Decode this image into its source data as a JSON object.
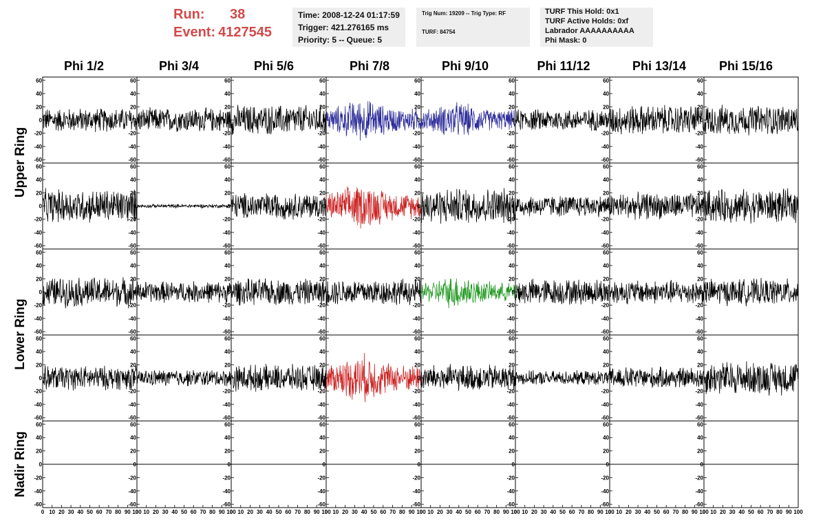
{
  "header": {
    "run_label": "Run:",
    "run_value": "38",
    "event_label": "Event:",
    "event_value": "4127545"
  },
  "info_time": {
    "time": "Time: 2008-12-24 01:17:59",
    "trigger": "Trigger: 421.276165 ms",
    "priority": "Priority: 5 -- Queue: 5"
  },
  "info_trig": {
    "trig": "Trig Num: 19209 -- Trig Type: RF",
    "turf": "TURF: 84754"
  },
  "info_turf": {
    "hold": "TURF This Hold: 0x1",
    "active": "TURF Active Holds: 0xf",
    "labrador": "Labrador AAAAAAAAAA",
    "mask": "Phi Mask: 0"
  },
  "colors": {
    "trace": "#000000",
    "upper_highlight": "#2b2b9a",
    "hpol_highlight": "#cc2222",
    "lower_highlight": "#229922",
    "run_text": "#d24a4a",
    "panel_bg": "#eeeeee"
  },
  "chart_data": {
    "type": "line",
    "columns": [
      "Phi 1/2",
      "Phi 3/4",
      "Phi 5/6",
      "Phi 7/8",
      "Phi 9/10",
      "Phi 11/12",
      "Phi 13/14",
      "Phi 15/16"
    ],
    "ring_labels": [
      "Upper Ring",
      "Lower Ring",
      "Nadir Ring"
    ],
    "rows_per_ring": [
      2,
      2,
      1
    ],
    "xlim": [
      0,
      100
    ],
    "ylim": [
      -65,
      65
    ],
    "x_ticks": [
      "0",
      "10",
      "20",
      "30",
      "40",
      "50",
      "60",
      "70",
      "80",
      "90",
      "100"
    ],
    "y_ticks": [
      "-60",
      "-40",
      "-20",
      "0",
      "20",
      "40",
      "60"
    ],
    "grid": false,
    "traces": [
      [
        {
          "amp": 20,
          "color": "trace"
        },
        {
          "amp": 20,
          "color": "trace"
        },
        {
          "amp": 25,
          "color": "trace"
        },
        {
          "amp": 35,
          "color": "upper_highlight"
        },
        {
          "amp": 30,
          "color": "upper_highlight"
        },
        {
          "amp": 18,
          "color": "trace"
        },
        {
          "amp": 25,
          "color": "trace"
        },
        {
          "amp": 25,
          "color": "trace"
        }
      ],
      [
        {
          "amp": 28,
          "color": "trace"
        },
        {
          "amp": 3,
          "color": "trace"
        },
        {
          "amp": 22,
          "color": "trace"
        },
        {
          "amp": 38,
          "color": "hpol_highlight"
        },
        {
          "amp": 30,
          "color": "trace"
        },
        {
          "amp": 18,
          "color": "trace"
        },
        {
          "amp": 22,
          "color": "trace"
        },
        {
          "amp": 28,
          "color": "trace"
        }
      ],
      [
        {
          "amp": 25,
          "color": "trace"
        },
        {
          "amp": 18,
          "color": "trace"
        },
        {
          "amp": 22,
          "color": "trace"
        },
        {
          "amp": 22,
          "color": "trace"
        },
        {
          "amp": 28,
          "color": "lower_highlight"
        },
        {
          "amp": 22,
          "color": "trace"
        },
        {
          "amp": 20,
          "color": "trace"
        },
        {
          "amp": 22,
          "color": "trace"
        }
      ],
      [
        {
          "amp": 20,
          "color": "trace"
        },
        {
          "amp": 14,
          "color": "trace"
        },
        {
          "amp": 22,
          "color": "trace"
        },
        {
          "amp": 40,
          "color": "hpol_highlight"
        },
        {
          "amp": 22,
          "color": "trace"
        },
        {
          "amp": 12,
          "color": "trace"
        },
        {
          "amp": 18,
          "color": "trace"
        },
        {
          "amp": 28,
          "color": "trace"
        }
      ],
      [
        {
          "amp": 0,
          "color": "trace"
        },
        {
          "amp": 0,
          "color": "trace"
        },
        {
          "amp": 0,
          "color": "trace"
        },
        {
          "amp": 0,
          "color": "trace"
        },
        {
          "amp": 0,
          "color": "trace"
        },
        {
          "amp": 0,
          "color": "trace"
        },
        {
          "amp": 0,
          "color": "trace"
        },
        {
          "amp": 0,
          "color": "trace"
        }
      ]
    ]
  }
}
